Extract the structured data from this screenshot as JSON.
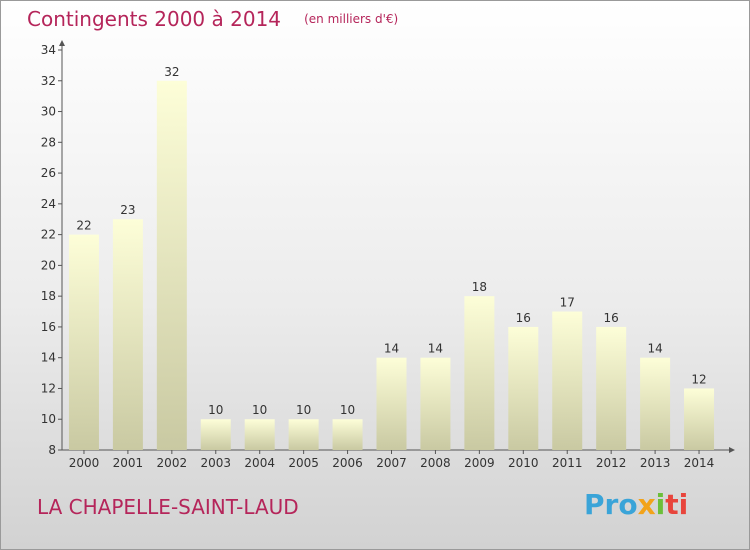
{
  "title": "Contingents 2000 à 2014",
  "unit_note": "(en milliers d'€)",
  "place_name": "LA CHAPELLE-SAINT-LAUD",
  "logo": {
    "parts": [
      "Pro",
      "x",
      "i",
      "ti"
    ]
  },
  "colors": {
    "accent": "#b5255a",
    "bar_top": "#fdfed8",
    "bar_bottom": "#c9c9a2"
  },
  "chart_data": {
    "type": "bar",
    "categories": [
      "2000",
      "2001",
      "2002",
      "2003",
      "2004",
      "2005",
      "2006",
      "2007",
      "2008",
      "2009",
      "2010",
      "2011",
      "2012",
      "2013",
      "2014"
    ],
    "values": [
      22,
      23,
      32,
      10,
      10,
      10,
      10,
      14,
      14,
      18,
      16,
      17,
      16,
      14,
      12
    ],
    "title": "Contingents 2000 à 2014",
    "xlabel": "",
    "ylabel": "",
    "ylim": [
      8,
      34
    ],
    "yticks": [
      8,
      10,
      12,
      14,
      16,
      18,
      20,
      22,
      24,
      26,
      28,
      30,
      32,
      34
    ],
    "grid": false,
    "data_labels": true
  }
}
